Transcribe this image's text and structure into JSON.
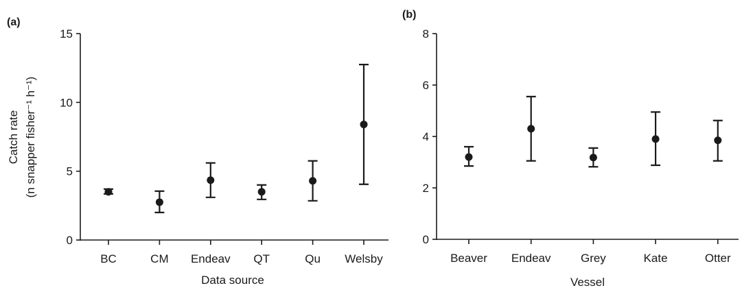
{
  "chart_data": [
    {
      "type": "scatter",
      "panel_label": "(a)",
      "xlabel": "Data source",
      "ylabel": "Catch rate",
      "ylabel_line2": "(n snapper fisher⁻¹ h⁻¹)",
      "ylim": [
        0,
        15
      ],
      "yticks": [
        0,
        5,
        10,
        15
      ],
      "categories": [
        "BC",
        "CM",
        "Endeav",
        "QT",
        "Qu",
        "Welsby"
      ],
      "series": [
        {
          "values": [
            3.5,
            2.75,
            4.35,
            3.5,
            4.3,
            8.4
          ],
          "lower": [
            3.35,
            2.0,
            3.1,
            2.95,
            2.85,
            4.05
          ],
          "upper": [
            3.7,
            3.55,
            5.6,
            4.0,
            5.75,
            12.75
          ]
        }
      ],
      "error_bars": true,
      "grid": false
    },
    {
      "type": "scatter",
      "panel_label": "(b)",
      "xlabel": "Vessel",
      "ylabel": "",
      "ylim": [
        0,
        8
      ],
      "yticks": [
        0,
        2,
        4,
        6,
        8
      ],
      "categories": [
        "Beaver",
        "Endeav",
        "Grey",
        "Kate",
        "Otter"
      ],
      "series": [
        {
          "values": [
            3.2,
            4.3,
            3.18,
            3.9,
            3.85
          ],
          "lower": [
            2.85,
            3.05,
            2.82,
            2.88,
            3.05
          ],
          "upper": [
            3.6,
            5.55,
            3.55,
            4.95,
            4.62
          ]
        }
      ],
      "error_bars": true,
      "grid": false
    }
  ]
}
